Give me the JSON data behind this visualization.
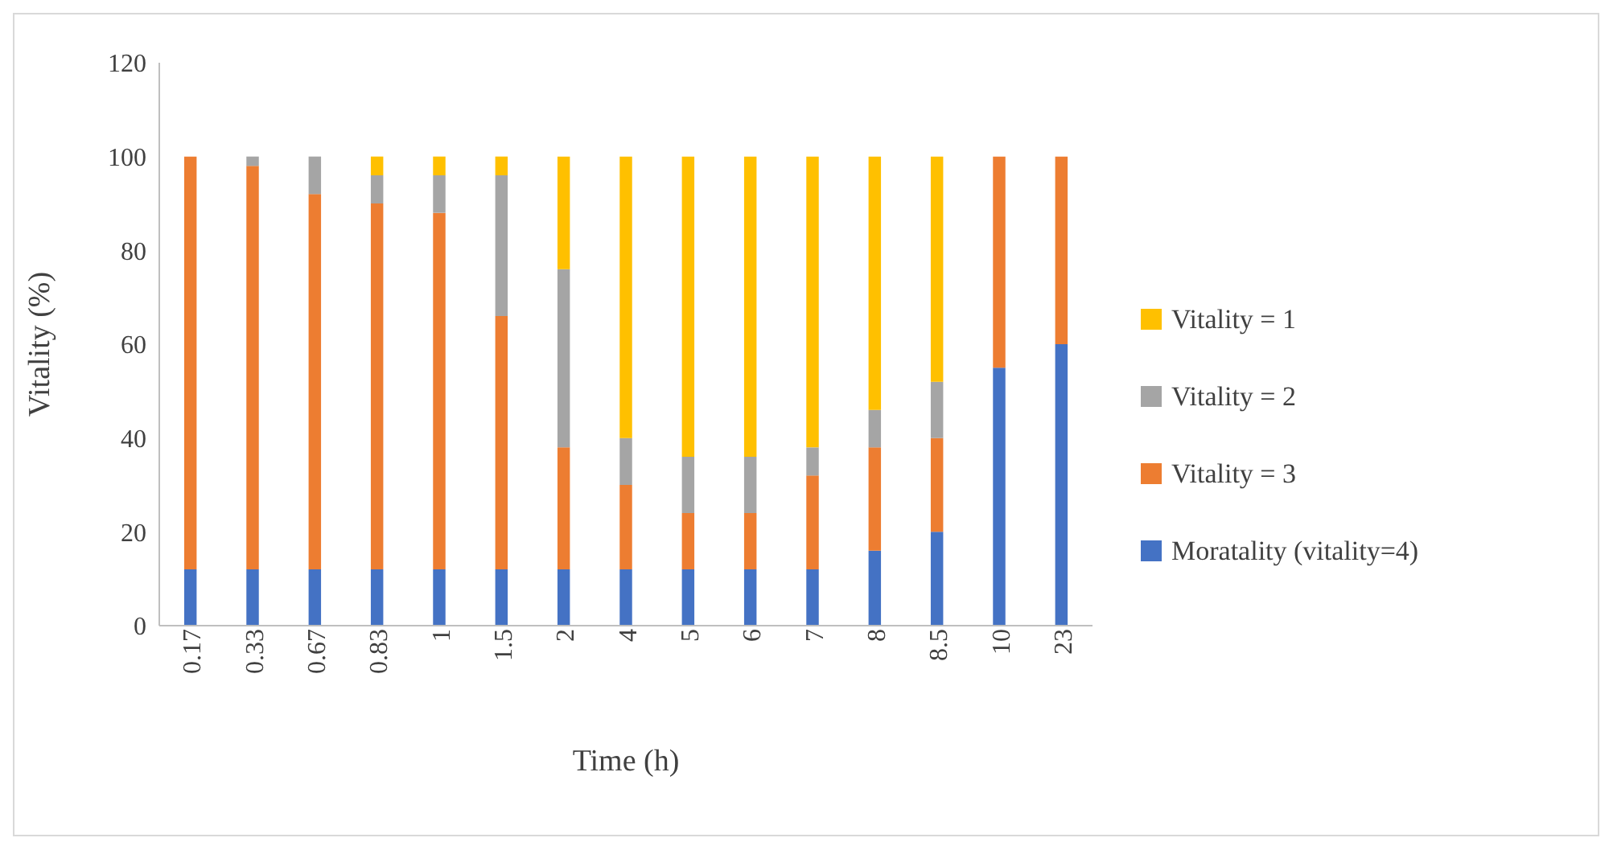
{
  "chart_data": {
    "type": "bar",
    "stacked": true,
    "xlabel": "Time (h)",
    "ylabel": "Vitality (%)",
    "categories": [
      "0.17",
      "0.33",
      "0.67",
      "0.83",
      "1",
      "1.5",
      "2",
      "4",
      "5",
      "6",
      "7",
      "8",
      "8.5",
      "10",
      "23"
    ],
    "series": [
      {
        "name": "Moratality (vitality=4)",
        "color": "#4472c4",
        "values": [
          12,
          12,
          12,
          12,
          12,
          12,
          12,
          12,
          12,
          12,
          12,
          16,
          20,
          55,
          60
        ]
      },
      {
        "name": "Vitality = 3",
        "color": "#ed7d31",
        "values": [
          88,
          86,
          80,
          78,
          76,
          54,
          26,
          18,
          12,
          12,
          20,
          22,
          20,
          45,
          40
        ]
      },
      {
        "name": "Vitality = 2",
        "color": "#a5a5a5",
        "values": [
          0,
          2,
          8,
          6,
          8,
          30,
          38,
          10,
          12,
          12,
          6,
          8,
          12,
          0,
          0
        ]
      },
      {
        "name": "Vitality = 1",
        "color": "#ffc000",
        "values": [
          0,
          0,
          0,
          4,
          4,
          4,
          24,
          60,
          64,
          64,
          62,
          54,
          48,
          0,
          0
        ]
      }
    ],
    "ylim": [
      0,
      120
    ],
    "yticks": [
      0,
      20,
      40,
      60,
      80,
      100,
      120
    ],
    "grid": false,
    "legend": "right"
  }
}
